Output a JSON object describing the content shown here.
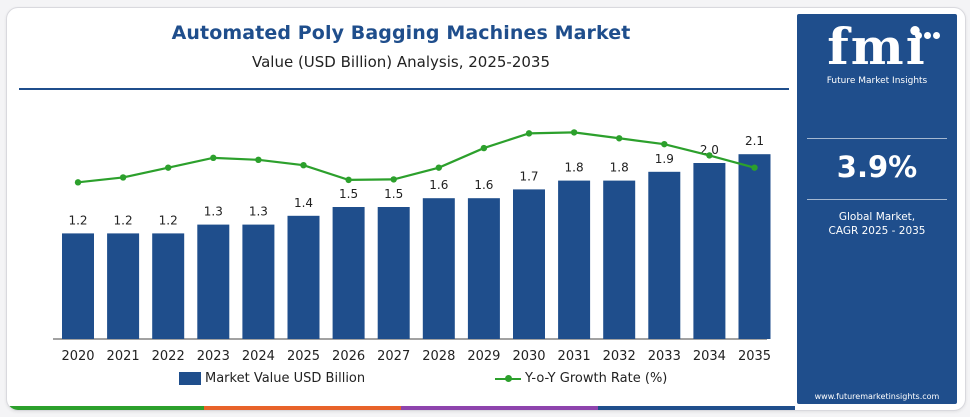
{
  "header": {
    "title": "Automated Poly Bagging Machines Market",
    "subtitle": "Value (USD Billion) Analysis, 2025-2035"
  },
  "sidebar": {
    "logo_text": "fmi",
    "logo_subtext": "Future Market Insights",
    "cagr_value": "3.9%",
    "cagr_label_line1": "Global Market,",
    "cagr_label_line2": "CAGR 2025 - 2035",
    "website": "www.futuremarketinsights.com"
  },
  "colors": {
    "bar": "#1f4e8c",
    "line": "#2ca02c",
    "sidebar": "#1f4e8c",
    "stripe": [
      "#2ca02c",
      "#e8632a",
      "#8e44ad",
      "#1f4e8c"
    ]
  },
  "chart_data": {
    "type": "bar",
    "title": "Automated Poly Bagging Machines Market",
    "subtitle": "Value (USD Billion) Analysis, 2025-2035",
    "categories": [
      "2020",
      "2021",
      "2022",
      "2023",
      "2024",
      "2025",
      "2026",
      "2027",
      "2028",
      "2029",
      "2030",
      "2031",
      "2032",
      "2033",
      "2034",
      "2035"
    ],
    "series": [
      {
        "name": "Market Value USD Billion",
        "type": "bar",
        "values": [
          1.2,
          1.2,
          1.2,
          1.3,
          1.3,
          1.4,
          1.5,
          1.5,
          1.6,
          1.6,
          1.7,
          1.8,
          1.8,
          1.9,
          2.0,
          2.1
        ],
        "labels": [
          "1.2",
          "1.2",
          "1.2",
          "1.3",
          "1.3",
          "1.4",
          "1.5",
          "1.5",
          "1.6",
          "1.6",
          "1.7",
          "1.8",
          "1.8",
          "1.9",
          "2.0",
          "2.1"
        ]
      },
      {
        "name": "Y-o-Y Growth Rate (%)",
        "type": "line",
        "values": [
          3.2,
          3.3,
          3.5,
          3.7,
          3.66,
          3.55,
          3.25,
          3.26,
          3.5,
          3.9,
          4.2,
          4.22,
          4.1,
          3.98,
          3.75,
          3.5
        ]
      }
    ],
    "ylim": [
      0,
      2.4
    ],
    "y2lim": [
      0,
      4.8
    ],
    "grid": false,
    "legend": "bottom"
  }
}
